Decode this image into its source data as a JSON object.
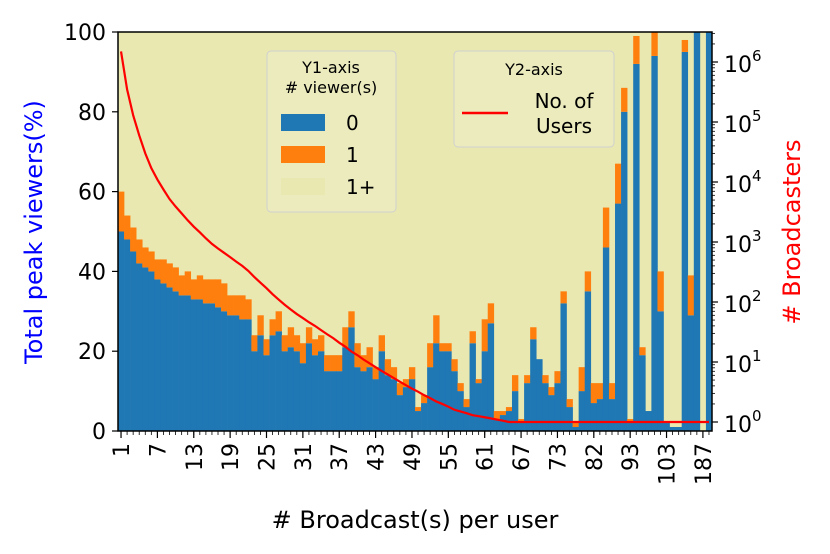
{
  "chart_data": {
    "type": "bar",
    "stacked": true,
    "xlabel": "# Broadcast(s) per user",
    "ylabel_left": "Total peak viewers(%)",
    "ylabel_right": "# Broadcasters",
    "left_axis_color": "#0000ff",
    "right_axis_color": "#ff0000",
    "ylim": [
      0,
      100
    ],
    "y2lim_log10": [
      -0.15,
      6.5
    ],
    "yticks": [
      "0",
      "20",
      "40",
      "60",
      "80",
      "100"
    ],
    "y2ticks": [
      {
        "base": "10",
        "exp": "0",
        "value": 1
      },
      {
        "base": "10",
        "exp": "1",
        "value": 10
      },
      {
        "base": "10",
        "exp": "2",
        "value": 100
      },
      {
        "base": "10",
        "exp": "3",
        "value": 1000
      },
      {
        "base": "10",
        "exp": "4",
        "value": 10000
      },
      {
        "base": "10",
        "exp": "5",
        "value": 100000
      },
      {
        "base": "10",
        "exp": "6",
        "value": 1000000
      }
    ],
    "xtick_labels": [
      {
        "label": "1",
        "index": 0
      },
      {
        "label": "7",
        "index": 6
      },
      {
        "label": "13",
        "index": 12
      },
      {
        "label": "19",
        "index": 18
      },
      {
        "label": "25",
        "index": 24
      },
      {
        "label": "31",
        "index": 30
      },
      {
        "label": "37",
        "index": 36
      },
      {
        "label": "43",
        "index": 42
      },
      {
        "label": "49",
        "index": 48
      },
      {
        "label": "55",
        "index": 54
      },
      {
        "label": "61",
        "index": 60
      },
      {
        "label": "67",
        "index": 66
      },
      {
        "label": "73",
        "index": 72
      },
      {
        "label": "82",
        "index": 78
      },
      {
        "label": "93",
        "index": 84
      },
      {
        "label": "103",
        "index": 90
      },
      {
        "label": "187",
        "index": 96
      }
    ],
    "bar_count": 98,
    "series": [
      {
        "name": "0",
        "color": "#1f77b4",
        "values": [
          50,
          48,
          45,
          42,
          41,
          40,
          38,
          37,
          36,
          35,
          34,
          34,
          33,
          33,
          32,
          32,
          31,
          30,
          29,
          29,
          28,
          28,
          20,
          24,
          19,
          24,
          25,
          20,
          21,
          20,
          17,
          22,
          19,
          20,
          15,
          15,
          15,
          21,
          26,
          16,
          15,
          16,
          13,
          20,
          14,
          13,
          9,
          11,
          13,
          5,
          7,
          16,
          22,
          20,
          20,
          15,
          10,
          6,
          22,
          12,
          20,
          27,
          3,
          4,
          5,
          10,
          2,
          12,
          23,
          18,
          12,
          9,
          12,
          32,
          6,
          1,
          10,
          35,
          7,
          8,
          46,
          8,
          57,
          80,
          2,
          92,
          19,
          5,
          94,
          30,
          2,
          1,
          1,
          95,
          29,
          100,
          0,
          100
        ]
      },
      {
        "name": "1",
        "color": "#ff7f0e",
        "values": [
          10,
          6,
          6,
          6,
          5,
          5,
          5,
          6,
          6,
          6,
          5,
          6,
          5,
          6,
          6,
          6,
          7,
          7,
          5,
          5,
          6,
          5,
          4,
          5,
          4,
          4,
          5,
          4,
          5,
          4,
          5,
          4,
          4,
          4,
          4,
          4,
          4,
          5,
          4,
          6,
          4,
          5,
          3,
          4,
          4,
          3,
          3,
          2,
          3,
          1,
          2,
          6,
          7,
          2,
          2,
          3,
          2,
          2,
          3,
          1,
          8,
          5,
          2,
          1,
          1,
          4,
          1,
          2,
          3,
          0,
          2,
          2,
          3,
          3,
          2,
          1,
          6,
          5,
          5,
          4,
          10,
          4,
          10,
          6,
          1,
          7,
          2,
          0,
          8,
          10,
          0,
          0,
          0,
          3,
          10,
          1,
          0,
          0
        ]
      },
      {
        "name": "1+",
        "color": "#e8e8b0"
      }
    ],
    "line_series": {
      "name": "No. of Users",
      "color": "#ff0000",
      "values": [
        1500000,
        350000,
        130000,
        60000,
        30000,
        17000,
        11000,
        7500,
        5200,
        3900,
        3000,
        2300,
        1800,
        1450,
        1150,
        930,
        780,
        660,
        560,
        470,
        400,
        330,
        260,
        210,
        170,
        135,
        110,
        90,
        75,
        63,
        54,
        46,
        40,
        34,
        29,
        25,
        21,
        18,
        15,
        13,
        11,
        9.5,
        8.2,
        7.1,
        6.2,
        5.4,
        4.7,
        4.1,
        3.6,
        3.2,
        2.8,
        2.5,
        2.2,
        2.0,
        1.8,
        1.6,
        1.5,
        1.4,
        1.3,
        1.25,
        1.2,
        1.15,
        1.1,
        1.05,
        1,
        1,
        1,
        1,
        1,
        1,
        1,
        1,
        1,
        1,
        1,
        1,
        1,
        1,
        1,
        1,
        1,
        1,
        1,
        1,
        1,
        1,
        1,
        1,
        1,
        1,
        1,
        1,
        1,
        1,
        1,
        1,
        1,
        1
      ]
    },
    "legend1": {
      "title": [
        "Y1-axis",
        "# viewer(s)"
      ],
      "entries": [
        "0",
        "1",
        "1+"
      ]
    },
    "legend2": {
      "title": "Y2-axis",
      "entries": [
        "No. of",
        "Users"
      ]
    }
  }
}
